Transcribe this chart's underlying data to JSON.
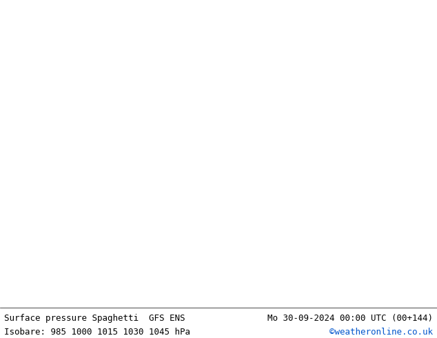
{
  "title_left": "Surface pressure Spaghetti  GFS ENS",
  "title_right": "Mo 30-09-2024 00:00 UTC (00+144)",
  "subtitle_left": "Isobare: 985 1000 1015 1030 1045 hPa",
  "subtitle_right": "©weatheronline.co.uk",
  "subtitle_right_color": "#0055cc",
  "xlim": [
    -10,
    20
  ],
  "ylim": [
    34,
    52
  ],
  "land_color": "#b8e8b8",
  "sea_color": "#d0d0d0",
  "gray": "#808080",
  "orange": "#ff8800",
  "yellow": "#dddd00",
  "cyan": "#00cccc",
  "blue": "#0077ff",
  "magenta": "#cc00cc",
  "red": "#ff2200",
  "purple": "#8800cc",
  "pink": "#ff55bb",
  "label_fontsize": 7,
  "footer_fontsize": 9
}
